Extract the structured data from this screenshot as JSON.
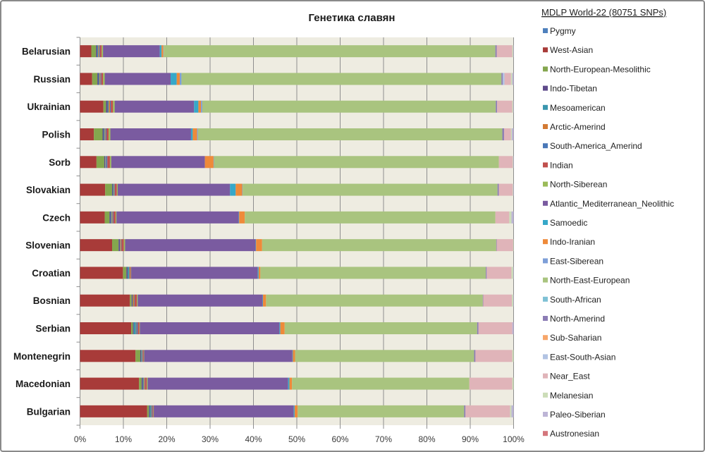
{
  "chart_data": {
    "type": "bar",
    "orientation": "horizontal",
    "stacked": "percent",
    "title": "Генетика славян",
    "xlabel": "",
    "ylabel": "",
    "xlim": [
      0,
      100
    ],
    "x_ticks": [
      "0%",
      "10%",
      "20%",
      "30%",
      "40%",
      "50%",
      "60%",
      "70%",
      "80%",
      "90%",
      "100%"
    ],
    "grid": "vertical",
    "plot_background": "#EEECE1",
    "legend": {
      "title": "MDLP World-22 (80751 SNPs)",
      "position": "right"
    },
    "categories": [
      "Belarusian",
      "Russian",
      "Ukrainian",
      "Polish",
      "Sorb",
      "Slovakian",
      "Czech",
      "Slovenian",
      "Croatian",
      "Bosnian",
      "Serbian",
      "Montenegrin",
      "Macedonian",
      "Bulgarian"
    ],
    "series": [
      {
        "name": "Pygmy",
        "color": "#4F81BD",
        "values": [
          0,
          0,
          0,
          0,
          0,
          0,
          0,
          0,
          0,
          0,
          0,
          0,
          0,
          0
        ]
      },
      {
        "name": "West-Asian",
        "color": "#A83B39",
        "values": [
          2.6,
          2.8,
          5.4,
          3.2,
          3.8,
          5.8,
          5.7,
          7.4,
          9.9,
          11.5,
          11.8,
          12.8,
          13.6,
          15.5
        ]
      },
      {
        "name": "North-European-Mesolithic",
        "color": "#84A64E",
        "values": [
          1.1,
          1.2,
          0.6,
          2.0,
          1.8,
          1.6,
          1.1,
          1.5,
          0.8,
          0.4,
          0.4,
          1.1,
          0.6,
          0.4
        ]
      },
      {
        "name": "Indo-Tibetan",
        "color": "#5F4B8B",
        "values": [
          0.3,
          0.3,
          0.4,
          0.3,
          0.2,
          0.2,
          0.3,
          0.3,
          0.3,
          0.2,
          0.2,
          0.2,
          0.3,
          0.2
        ]
      },
      {
        "name": "Mesoamerican",
        "color": "#3A96AE",
        "values": [
          0.2,
          0.2,
          0.2,
          0.2,
          0.1,
          0.2,
          0.2,
          0.1,
          0.3,
          0.1,
          0.5,
          0.2,
          0.2,
          0.3
        ]
      },
      {
        "name": "Arctic-Amerind",
        "color": "#D37A33",
        "values": [
          0.2,
          0.2,
          0.3,
          0.2,
          0.1,
          0.1,
          0.2,
          0.2,
          0.1,
          0.3,
          0.1,
          0.1,
          0.2,
          0.1
        ]
      },
      {
        "name": "South-America_Amerind",
        "color": "#4A78B8",
        "values": [
          0.2,
          0.2,
          0.2,
          0.2,
          0.3,
          0.1,
          0.2,
          0.1,
          0.1,
          0.1,
          0.3,
          0.1,
          0.1,
          0.2
        ]
      },
      {
        "name": "Indian",
        "color": "#C0504D",
        "values": [
          0.4,
          0.4,
          0.5,
          0.5,
          0.6,
          0.5,
          0.5,
          0.5,
          0.2,
          0.5,
          0.4,
          0.2,
          0.4,
          0.2
        ]
      },
      {
        "name": "North-Siberean",
        "color": "#9BBB59",
        "values": [
          0.3,
          0.4,
          0.4,
          0.4,
          0.3,
          0.2,
          0.2,
          0.3,
          0.1,
          0.2,
          0.1,
          0.1,
          0.2,
          0.1
        ]
      },
      {
        "name": "Atlantic_Mediterranean_Neolithic",
        "color": "#7A5BA0",
        "values": [
          13.1,
          15.2,
          18.3,
          18.6,
          21.6,
          25.9,
          28.2,
          30.1,
          29.2,
          28.8,
          32.2,
          34.2,
          32.4,
          32.3
        ]
      },
      {
        "name": "Samoedic",
        "color": "#36A8C9",
        "values": [
          0.4,
          1.4,
          1.0,
          0.4,
          0,
          1.3,
          0.1,
          0.1,
          0.2,
          0.1,
          0.2,
          0.1,
          0.3,
          0.2
        ]
      },
      {
        "name": "Indo-Iranian",
        "color": "#EE8A3A",
        "values": [
          0.4,
          0.7,
          0.6,
          1.0,
          2.0,
          1.5,
          1.3,
          1.4,
          0.4,
          0.7,
          1.0,
          0.5,
          0.6,
          0.7
        ]
      },
      {
        "name": "East-Siberean",
        "color": "#7E9FD8",
        "values": [
          0.1,
          0.4,
          0.3,
          0.2,
          0.1,
          0.1,
          0,
          0,
          0,
          0,
          0,
          0,
          0,
          0
        ]
      },
      {
        "name": "North-East-European",
        "color": "#A9C47F",
        "values": [
          76.5,
          73.8,
          67.7,
          70.2,
          65.7,
          58.8,
          57.8,
          54.0,
          52.0,
          50.0,
          44.4,
          41.3,
          40.9,
          38.4
        ]
      },
      {
        "name": "South-African",
        "color": "#7FC1D5",
        "values": [
          0,
          0,
          0,
          0,
          0,
          0,
          0,
          0,
          0,
          0,
          0,
          0,
          0,
          0
        ]
      },
      {
        "name": "North-Amerind",
        "color": "#8C7DB5",
        "values": [
          0.3,
          0.3,
          0.3,
          0.4,
          0,
          0.3,
          0,
          0.1,
          0.2,
          0.1,
          0.3,
          0.3,
          0,
          0.3
        ]
      },
      {
        "name": "Sub-Saharian",
        "color": "#F7A66A",
        "values": [
          0,
          0,
          0,
          0,
          0,
          0,
          0,
          0,
          0,
          0,
          0,
          0,
          0,
          0
        ]
      },
      {
        "name": "East-South-Asian",
        "color": "#B2C3E3",
        "values": [
          0,
          0.4,
          0,
          0,
          0,
          0,
          0,
          0,
          0,
          0,
          0,
          0,
          0,
          0
        ]
      },
      {
        "name": "Near_East",
        "color": "#E0B4B9",
        "values": [
          3.6,
          1.5,
          3.5,
          1.6,
          3.2,
          3.2,
          3.2,
          3.8,
          5.7,
          6.6,
          7.8,
          8.5,
          9.9,
          10.3
        ]
      },
      {
        "name": "Melanesian",
        "color": "#CCDDB8",
        "values": [
          0.2,
          0.3,
          0.2,
          0.2,
          0.1,
          0.1,
          0.5,
          0.1,
          0.4,
          0.3,
          0,
          0.3,
          0.3,
          0.3
        ]
      },
      {
        "name": "Paleo-Siberian",
        "color": "#BDB5D6",
        "values": [
          0.1,
          0.3,
          0.1,
          0.4,
          0.1,
          0.1,
          0.5,
          0,
          0.1,
          0.1,
          0.3,
          0,
          0,
          0.5
        ]
      },
      {
        "name": "Austronesian",
        "color": "#D4767C",
        "values": [
          0,
          0,
          0,
          0,
          0,
          0,
          0,
          0,
          0,
          0,
          0,
          0,
          0,
          0
        ]
      }
    ]
  }
}
